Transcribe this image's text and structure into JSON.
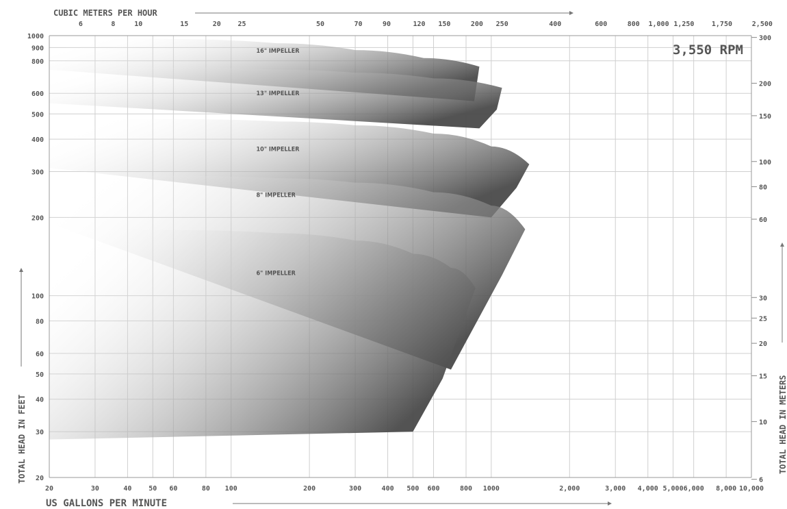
{
  "chart_data": {
    "type": "area",
    "title": "3,550 RPM",
    "xlabel": "US GALLONS PER MINUTE",
    "ylabel": "TOTAL HEAD IN FEET",
    "x2label": "CUBIC METERS PER HOUR",
    "y2label": "TOTAL HEAD IN METERS",
    "x_scale": "log",
    "y_scale": "log",
    "xlim": [
      20,
      10000
    ],
    "ylim": [
      20,
      1000
    ],
    "grid": true,
    "x_ticks": [
      {
        "v": 20,
        "label": "20"
      },
      {
        "v": 30,
        "label": "30"
      },
      {
        "v": 40,
        "label": "40"
      },
      {
        "v": 50,
        "label": "50"
      },
      {
        "v": 60,
        "label": "60"
      },
      {
        "v": 80,
        "label": "80"
      },
      {
        "v": 100,
        "label": "100"
      },
      {
        "v": 200,
        "label": "200"
      },
      {
        "v": 300,
        "label": "300"
      },
      {
        "v": 400,
        "label": "400"
      },
      {
        "v": 500,
        "label": "500"
      },
      {
        "v": 600,
        "label": "600"
      },
      {
        "v": 800,
        "label": "800"
      },
      {
        "v": 1000,
        "label": "1000"
      },
      {
        "v": 2000,
        "label": "2,000"
      },
      {
        "v": 3000,
        "label": "3,000"
      },
      {
        "v": 4000,
        "label": "4,000"
      },
      {
        "v": 5000,
        "label": "5,000"
      },
      {
        "v": 6000,
        "label": "6,000"
      },
      {
        "v": 8000,
        "label": "8,000"
      },
      {
        "v": 10000,
        "label": "10,000"
      }
    ],
    "x2_ticks": [
      {
        "v": 6,
        "label": "6"
      },
      {
        "v": 8,
        "label": "8"
      },
      {
        "v": 10,
        "label": "10"
      },
      {
        "v": 15,
        "label": "15"
      },
      {
        "v": 20,
        "label": "20"
      },
      {
        "v": 25,
        "label": "25"
      },
      {
        "v": 50,
        "label": "50"
      },
      {
        "v": 70,
        "label": "70"
      },
      {
        "v": 90,
        "label": "90"
      },
      {
        "v": 120,
        "label": "120"
      },
      {
        "v": 150,
        "label": "150"
      },
      {
        "v": 200,
        "label": "200"
      },
      {
        "v": 250,
        "label": "250"
      },
      {
        "v": 400,
        "label": "400"
      },
      {
        "v": 600,
        "label": "600"
      },
      {
        "v": 800,
        "label": "800"
      },
      {
        "v": 1000,
        "label": "1,000"
      },
      {
        "v": 1250,
        "label": "1,250"
      },
      {
        "v": 1750,
        "label": "1,750"
      },
      {
        "v": 2500,
        "label": "2,500"
      }
    ],
    "y_ticks": [
      {
        "v": 20,
        "label": "20"
      },
      {
        "v": 30,
        "label": "30"
      },
      {
        "v": 40,
        "label": "40"
      },
      {
        "v": 50,
        "label": "50"
      },
      {
        "v": 60,
        "label": "60"
      },
      {
        "v": 80,
        "label": "80"
      },
      {
        "v": 100,
        "label": "100"
      },
      {
        "v": 200,
        "label": "200"
      },
      {
        "v": 300,
        "label": "300"
      },
      {
        "v": 400,
        "label": "400"
      },
      {
        "v": 500,
        "label": "500"
      },
      {
        "v": 600,
        "label": "600"
      },
      {
        "v": 800,
        "label": "800"
      },
      {
        "v": 900,
        "label": "900"
      },
      {
        "v": 1000,
        "label": "1000"
      }
    ],
    "y2_ticks": [
      {
        "v": 6,
        "label": "6"
      },
      {
        "v": 10,
        "label": "10"
      },
      {
        "v": 15,
        "label": "15"
      },
      {
        "v": 20,
        "label": "20"
      },
      {
        "v": 25,
        "label": "25"
      },
      {
        "v": 30,
        "label": "30"
      },
      {
        "v": 60,
        "label": "60"
      },
      {
        "v": 80,
        "label": "80"
      },
      {
        "v": 100,
        "label": "100"
      },
      {
        "v": 150,
        "label": "150"
      },
      {
        "v": 200,
        "label": "200"
      },
      {
        "v": 300,
        "label": "300"
      }
    ],
    "series": [
      {
        "name": "16\" IMPELLER",
        "top": [
          [
            20,
            975
          ],
          [
            60,
            970
          ],
          [
            150,
            935
          ],
          [
            300,
            880
          ],
          [
            550,
            820
          ],
          [
            900,
            760
          ]
        ],
        "bottom": [
          [
            860,
            560
          ],
          [
            20,
            740
          ]
        ],
        "label_at": [
          125,
          860
        ]
      },
      {
        "name": "13\" IMPELLER",
        "top": [
          [
            20,
            760
          ],
          [
            60,
            755
          ],
          [
            150,
            740
          ],
          [
            300,
            720
          ],
          [
            600,
            685
          ],
          [
            1100,
            630
          ]
        ],
        "bottom": [
          [
            1050,
            520
          ],
          [
            900,
            440
          ],
          [
            20,
            550
          ]
        ],
        "label_at": [
          125,
          590
        ]
      },
      {
        "name": "10\" IMPELLER",
        "top": [
          [
            20,
            480
          ],
          [
            60,
            478
          ],
          [
            150,
            468
          ],
          [
            300,
            452
          ],
          [
            600,
            420
          ],
          [
            1000,
            375
          ],
          [
            1400,
            320
          ]
        ],
        "bottom": [
          [
            1250,
            260
          ],
          [
            1000,
            200
          ],
          [
            20,
            310
          ]
        ],
        "label_at": [
          125,
          360
        ]
      },
      {
        "name": "8\" IMPELLER",
        "top": [
          [
            20,
            290
          ],
          [
            60,
            289
          ],
          [
            150,
            283
          ],
          [
            300,
            272
          ],
          [
            600,
            250
          ],
          [
            1000,
            222
          ],
          [
            1350,
            180
          ]
        ],
        "bottom": [
          [
            1100,
            120
          ],
          [
            700,
            52
          ],
          [
            20,
            190
          ]
        ],
        "label_at": [
          125,
          240
        ]
      },
      {
        "name": "6\" IMPELLER",
        "top": [
          [
            20,
            180
          ],
          [
            60,
            179
          ],
          [
            150,
            174
          ],
          [
            300,
            163
          ],
          [
            500,
            145
          ],
          [
            700,
            128
          ],
          [
            870,
            107
          ]
        ],
        "bottom": [
          [
            800,
            85
          ],
          [
            650,
            48
          ],
          [
            500,
            30
          ],
          [
            20,
            28
          ]
        ],
        "label_at": [
          125,
          120
        ]
      }
    ]
  }
}
